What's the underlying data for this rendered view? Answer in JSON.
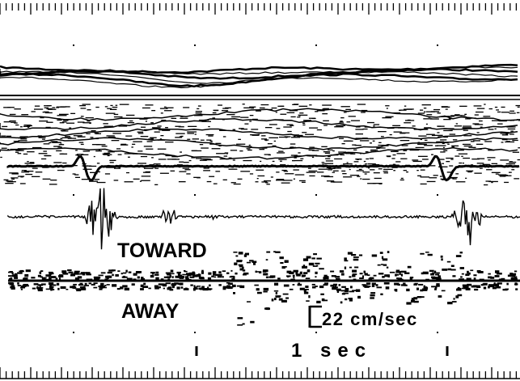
{
  "labels": {
    "toward": "TOWARD",
    "away": "AWAY"
  },
  "scale": {
    "velocity": "22 cm/sec",
    "time": "1 sec"
  }
}
